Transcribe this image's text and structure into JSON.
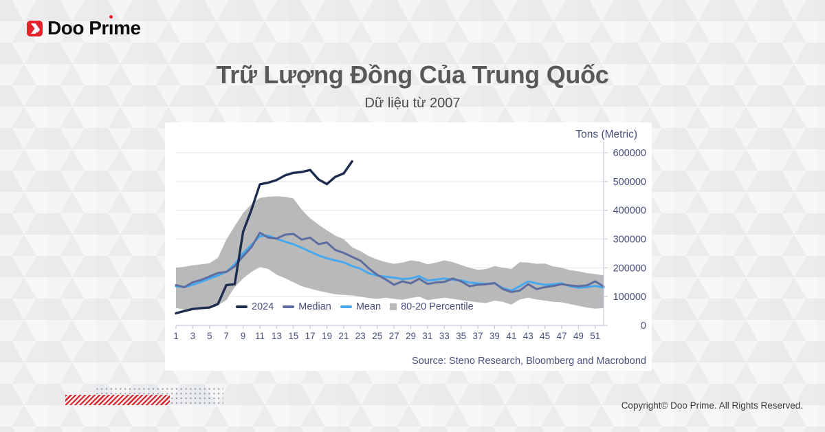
{
  "brand": {
    "name": "Doo Prime"
  },
  "title": "Trữ Lượng Đồng Của Trung Quốc",
  "subtitle": "Dữ liệu từ 2007",
  "chart_data": {
    "type": "line",
    "x_unit": "week",
    "x_min": 1,
    "x_max": 52,
    "x_ticks": [
      1,
      3,
      5,
      7,
      9,
      11,
      13,
      15,
      17,
      19,
      21,
      23,
      25,
      27,
      29,
      31,
      33,
      35,
      37,
      39,
      41,
      43,
      45,
      47,
      49,
      51
    ],
    "y_axis_label": "Tons (Metric)",
    "y_ticks": [
      0,
      100000,
      200000,
      300000,
      400000,
      500000,
      600000
    ],
    "y_max": 600000,
    "grid": "horizontal",
    "legend_position": "bottom-inside",
    "series": [
      {
        "name": "2024",
        "color": "#1d2c4e",
        "x_start": 1,
        "values": [
          42000,
          50000,
          57000,
          60000,
          62000,
          74000,
          140000,
          143000,
          325000,
          402000,
          490000,
          496000,
          505000,
          521000,
          530000,
          533000,
          540000,
          507000,
          491000,
          516000,
          528000,
          570000
        ]
      },
      {
        "name": "Median",
        "color": "#5d6da0",
        "x_start": 1,
        "values": [
          140000,
          133000,
          150000,
          158000,
          170000,
          182000,
          186000,
          205000,
          240000,
          272000,
          322000,
          305000,
          302000,
          315000,
          318000,
          298000,
          305000,
          282000,
          288000,
          262000,
          252000,
          238000,
          225000,
          198000,
          176000,
          160000,
          141000,
          153000,
          146000,
          162000,
          144000,
          149000,
          151000,
          163000,
          153000,
          136000,
          141000,
          143000,
          147000,
          126000,
          116000,
          121000,
          143000,
          126000,
          133000,
          137000,
          143000,
          139000,
          136000,
          139000,
          153000,
          135000
        ]
      },
      {
        "name": "Mean",
        "color": "#47a8ee",
        "x_start": 1,
        "values": [
          136000,
          133000,
          141000,
          151000,
          163000,
          173000,
          186000,
          212000,
          250000,
          280000,
          310000,
          312000,
          301000,
          291000,
          282000,
          270000,
          256000,
          243000,
          233000,
          226000,
          219000,
          206000,
          197000,
          181000,
          173000,
          169000,
          166000,
          161000,
          163000,
          171000,
          156000,
          159000,
          163000,
          159000,
          156000,
          149000,
          146000,
          144000,
          147000,
          129000,
          121000,
          136000,
          153000,
          146000,
          141000,
          143000,
          146000,
          136000,
          131000,
          133000,
          137000,
          131000
        ]
      }
    ],
    "band": {
      "label": "80-20 Percentile",
      "color": "#b9b9ba",
      "upper": [
        200000,
        204000,
        209000,
        212000,
        216000,
        235000,
        298000,
        345000,
        390000,
        422000,
        443000,
        447000,
        449000,
        447000,
        441000,
        402000,
        372000,
        350000,
        330000,
        312000,
        300000,
        272000,
        258000,
        241000,
        229000,
        220000,
        214000,
        218000,
        226000,
        222000,
        212000,
        218000,
        226000,
        220000,
        210000,
        200000,
        193000,
        196000,
        206000,
        200000,
        196000,
        220000,
        218000,
        214000,
        215000,
        205000,
        200000,
        192000,
        188000,
        182000,
        178000,
        174000
      ],
      "lower": [
        60000,
        55000,
        53000,
        57000,
        62000,
        70000,
        88000,
        133000,
        163000,
        186000,
        203000,
        196000,
        176000,
        164000,
        150000,
        136000,
        128000,
        120000,
        114000,
        108000,
        106000,
        104000,
        100000,
        95000,
        92000,
        96000,
        92000,
        89000,
        95000,
        100000,
        88000,
        92000,
        96000,
        92000,
        88000,
        84000,
        80000,
        78000,
        86000,
        82000,
        72000,
        90000,
        96000,
        90000,
        86000,
        82000,
        80000,
        74000,
        68000,
        62000,
        58000,
        60000
      ]
    },
    "source": "Source: Steno Research, Bloomberg and Macrobond"
  },
  "footer": {
    "copyright": "Copyright© Doo Prime. All Rights Reserved."
  }
}
